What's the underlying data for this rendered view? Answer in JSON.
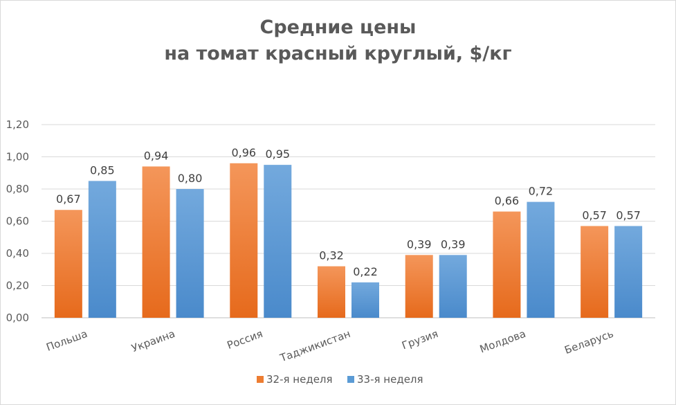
{
  "chart_data": {
    "type": "bar",
    "title": [
      "Средние цены",
      "на томат красный круглый, $/кг"
    ],
    "categories": [
      "Польша",
      "Украина",
      "Россия",
      "Таджикистан",
      "Грузия",
      "Молдова",
      "Беларусь"
    ],
    "series": [
      {
        "name": "32-я неделя",
        "values": [
          0.67,
          0.94,
          0.96,
          0.32,
          0.39,
          0.66,
          0.57
        ],
        "labels": [
          "0,67",
          "0,94",
          "0,96",
          "0,32",
          "0,39",
          "0,66",
          "0,57"
        ],
        "color": "#ED7D31"
      },
      {
        "name": "33-я неделя",
        "values": [
          0.85,
          0.8,
          0.95,
          0.22,
          0.39,
          0.72,
          0.57
        ],
        "labels": [
          "0,85",
          "0,80",
          "0,95",
          "0,22",
          "0,39",
          "0,72",
          "0,57"
        ],
        "color": "#5B9BD5"
      }
    ],
    "ylim": [
      0,
      1.2
    ],
    "yticks": [
      0,
      0.2,
      0.4,
      0.6,
      0.8,
      1.0,
      1.2
    ],
    "ytick_labels": [
      "0,00",
      "0,20",
      "0,40",
      "0,60",
      "0,80",
      "1,00",
      "1,20"
    ],
    "grid": true,
    "legend": "bottom"
  }
}
